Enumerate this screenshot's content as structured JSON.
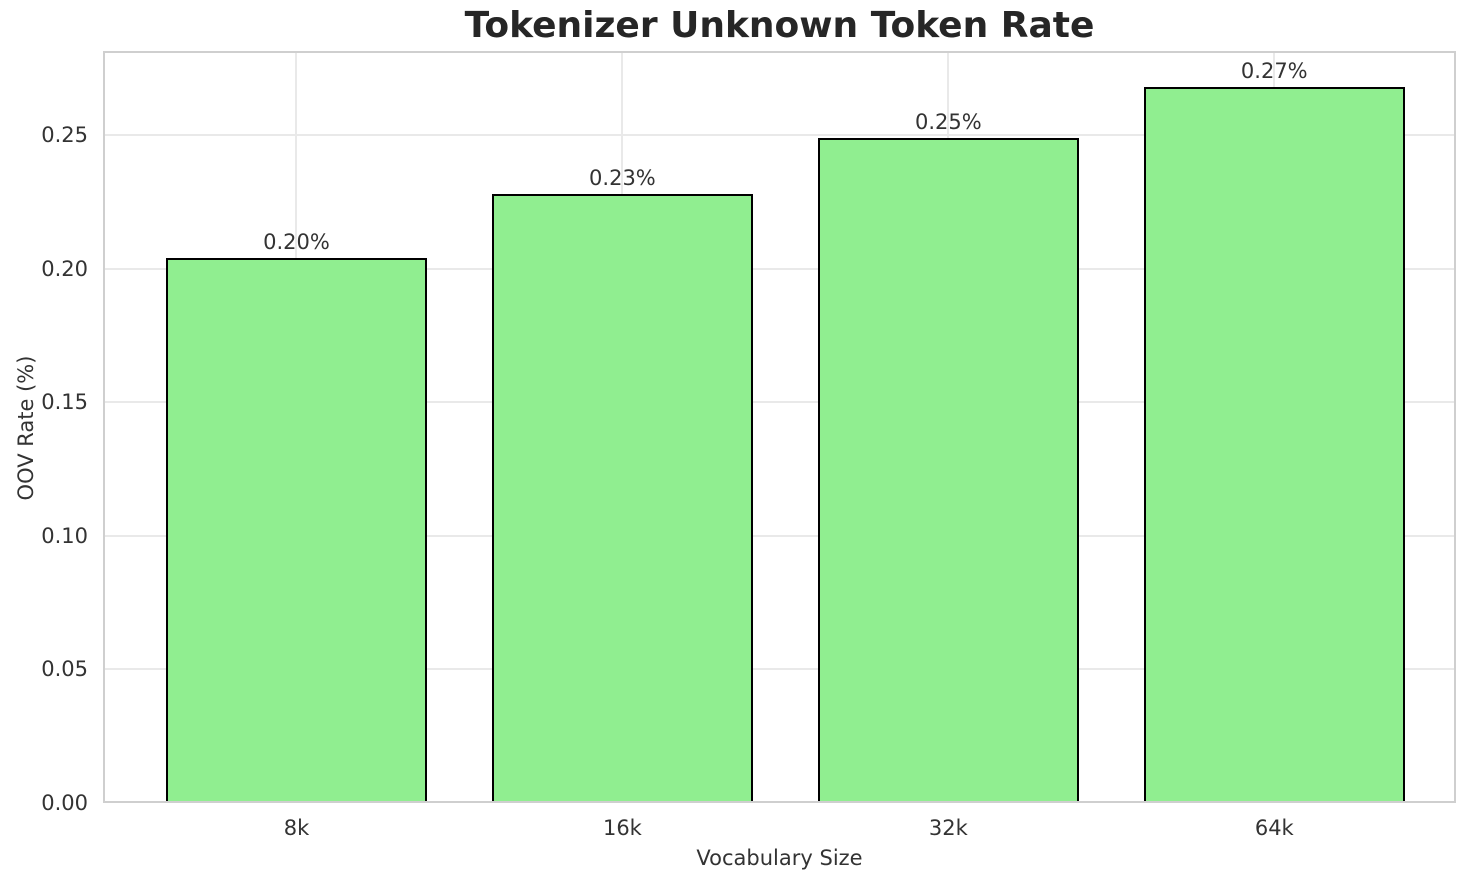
{
  "chart_data": {
    "type": "bar",
    "title": "Tokenizer Unknown Token Rate",
    "xlabel": "Vocabulary Size",
    "ylabel": "OOV Rate (%)",
    "categories": [
      "8k",
      "16k",
      "32k",
      "64k"
    ],
    "values": [
      0.204,
      0.228,
      0.249,
      0.268
    ],
    "bar_labels": [
      "0.20%",
      "0.23%",
      "0.25%",
      "0.27%"
    ],
    "yticks": [
      0,
      0.05,
      0.1,
      0.15,
      0.2,
      0.25
    ],
    "ytick_labels": [
      "0.00",
      "0.05",
      "0.10",
      "0.15",
      "0.20",
      "0.25"
    ],
    "ylim": [
      0,
      0.2815
    ],
    "grid": "on",
    "legend": "none",
    "colors": {
      "bar_fill": "#90ee90",
      "bar_edge": "#000000",
      "grid": "#e9e9e9",
      "spine": "#cfcfcf",
      "tick_text": "#333333",
      "title_text": "#262626",
      "background": "#ffffff"
    }
  }
}
